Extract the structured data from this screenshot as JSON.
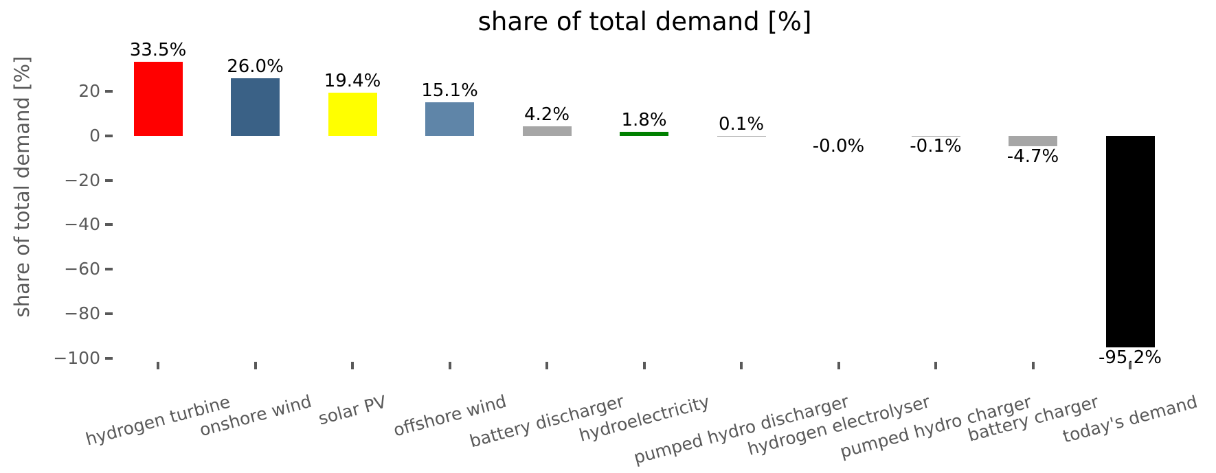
{
  "chart_data": {
    "type": "bar",
    "title": "share of total demand [%]",
    "xlabel": "",
    "ylabel": "share of total demand [%]",
    "grid": false,
    "legend": "none",
    "ylim": [
      -101,
      42
    ],
    "categories": [
      "hydrogen turbine",
      "onshore wind",
      "solar PV",
      "offshore wind",
      "battery discharger",
      "hydroelectricity",
      "pumped hydro discharger",
      "hydrogen electrolyser",
      "pumped hydro charger",
      "battery charger",
      "today's demand"
    ],
    "values": [
      33.5,
      26.0,
      19.4,
      15.1,
      4.2,
      1.8,
      0.1,
      -0.0,
      -0.1,
      -4.7,
      -95.2
    ],
    "bar_labels": [
      "33.5%",
      "26.0%",
      "19.4%",
      "15.1%",
      "4.2%",
      "1.8%",
      "0.1%",
      "-0.0%",
      "-0.1%",
      "-4.7%",
      "-95.2%"
    ],
    "bar_colors": [
      "#ff0000",
      "#3a6186",
      "#ffff00",
      "#5f85a8",
      "#a6a6a6",
      "#008000",
      "#a6a6a6",
      "#a6a6a6",
      "#a6a6a6",
      "#a6a6a6",
      "#000000"
    ],
    "ytick_values": [
      20,
      0,
      -20,
      -40,
      -60,
      -80,
      -100
    ],
    "ytick_labels": [
      "20",
      "0",
      "−20",
      "−40",
      "−60",
      "−80",
      "−100"
    ],
    "tick_color": "#595959",
    "label_color": "#000000",
    "background_color": "#ffffff"
  }
}
